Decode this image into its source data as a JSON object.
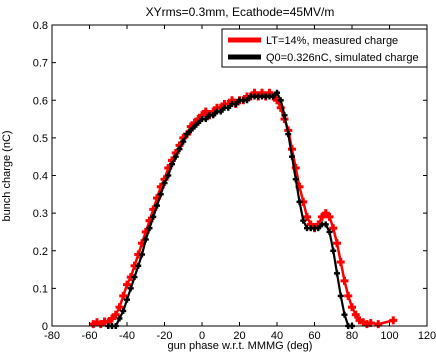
{
  "chart_data": {
    "type": "line",
    "title": "XYrms=0.3mm, Ecathode=45MV/m",
    "xlabel": "gun phase w.r.t. MMMG (deg)",
    "ylabel": "bunch charge (nC)",
    "xlim": [
      -80,
      120
    ],
    "ylim": [
      0,
      0.8
    ],
    "x_ticks": [
      -80,
      -60,
      -40,
      -20,
      0,
      20,
      40,
      60,
      80,
      100,
      120
    ],
    "x_tick_labels": [
      "-80",
      "-60",
      "-40",
      "-20",
      "0",
      "20",
      "40",
      "60",
      "80",
      "100",
      "120"
    ],
    "y_ticks": [
      0,
      0.1,
      0.2,
      0.3,
      0.4,
      0.5,
      0.6,
      0.7,
      0.8
    ],
    "y_tick_labels": [
      "0",
      "0.1",
      "0.2",
      "0.3",
      "0.4",
      "0.5",
      "0.6",
      "0.7",
      "0.8"
    ],
    "grid": false,
    "legend_position": "top-right",
    "series": [
      {
        "name": "LT=14%, measured charge",
        "color": "#ff0000",
        "marker": "plus",
        "points": [
          [
            -58,
            0.005
          ],
          [
            -56,
            0.01
          ],
          [
            -54,
            0.005
          ],
          [
            -52,
            0.012
          ],
          [
            -50,
            0.01
          ],
          [
            -48,
            0.02
          ],
          [
            -46,
            0.03
          ],
          [
            -44,
            0.05
          ],
          [
            -42,
            0.08
          ],
          [
            -40,
            0.11
          ],
          [
            -38,
            0.13
          ],
          [
            -36,
            0.16
          ],
          [
            -34,
            0.19
          ],
          [
            -32,
            0.22
          ],
          [
            -30,
            0.25
          ],
          [
            -28,
            0.28
          ],
          [
            -26,
            0.31
          ],
          [
            -24,
            0.34
          ],
          [
            -22,
            0.37
          ],
          [
            -20,
            0.39
          ],
          [
            -18,
            0.42
          ],
          [
            -16,
            0.44
          ],
          [
            -14,
            0.46
          ],
          [
            -12,
            0.48
          ],
          [
            -10,
            0.5
          ],
          [
            -8,
            0.51
          ],
          [
            -6,
            0.53
          ],
          [
            -4,
            0.54
          ],
          [
            -2,
            0.55
          ],
          [
            0,
            0.56
          ],
          [
            2,
            0.57
          ],
          [
            4,
            0.56
          ],
          [
            6,
            0.57
          ],
          [
            8,
            0.58
          ],
          [
            10,
            0.58
          ],
          [
            12,
            0.59
          ],
          [
            14,
            0.59
          ],
          [
            16,
            0.6
          ],
          [
            18,
            0.59
          ],
          [
            20,
            0.6
          ],
          [
            22,
            0.6
          ],
          [
            24,
            0.61
          ],
          [
            26,
            0.61
          ],
          [
            28,
            0.62
          ],
          [
            30,
            0.61
          ],
          [
            32,
            0.62
          ],
          [
            34,
            0.61
          ],
          [
            36,
            0.62
          ],
          [
            38,
            0.61
          ],
          [
            40,
            0.6
          ],
          [
            42,
            0.58
          ],
          [
            44,
            0.55
          ],
          [
            46,
            0.52
          ],
          [
            48,
            0.47
          ],
          [
            50,
            0.42
          ],
          [
            52,
            0.37
          ],
          [
            54,
            0.33
          ],
          [
            56,
            0.29
          ],
          [
            58,
            0.27
          ],
          [
            60,
            0.26
          ],
          [
            62,
            0.27
          ],
          [
            64,
            0.29
          ],
          [
            66,
            0.3
          ],
          [
            68,
            0.29
          ],
          [
            70,
            0.26
          ],
          [
            72,
            0.22
          ],
          [
            74,
            0.17
          ],
          [
            76,
            0.12
          ],
          [
            78,
            0.08
          ],
          [
            80,
            0.05
          ],
          [
            82,
            0.03
          ],
          [
            84,
            0.015
          ],
          [
            86,
            0.01
          ],
          [
            88,
            0.005
          ],
          [
            90,
            0.008
          ],
          [
            94,
            0.005
          ],
          [
            102,
            0.015
          ]
        ]
      },
      {
        "name": "Q0=0.326nC, simulated charge",
        "color": "#000000",
        "marker": "plus",
        "points": [
          [
            -50,
            0.0
          ],
          [
            -48,
            0.0
          ],
          [
            -46,
            0.0
          ],
          [
            -44,
            0.02
          ],
          [
            -42,
            0.04
          ],
          [
            -40,
            0.07
          ],
          [
            -38,
            0.1
          ],
          [
            -36,
            0.13
          ],
          [
            -34,
            0.16
          ],
          [
            -32,
            0.19
          ],
          [
            -30,
            0.23
          ],
          [
            -28,
            0.26
          ],
          [
            -26,
            0.29
          ],
          [
            -24,
            0.32
          ],
          [
            -22,
            0.35
          ],
          [
            -20,
            0.38
          ],
          [
            -18,
            0.4
          ],
          [
            -16,
            0.43
          ],
          [
            -14,
            0.45
          ],
          [
            -12,
            0.47
          ],
          [
            -10,
            0.49
          ],
          [
            -8,
            0.51
          ],
          [
            -6,
            0.52
          ],
          [
            -4,
            0.53
          ],
          [
            -2,
            0.54
          ],
          [
            0,
            0.55
          ],
          [
            2,
            0.55
          ],
          [
            4,
            0.56
          ],
          [
            6,
            0.56
          ],
          [
            8,
            0.57
          ],
          [
            10,
            0.57
          ],
          [
            12,
            0.58
          ],
          [
            14,
            0.58
          ],
          [
            16,
            0.59
          ],
          [
            18,
            0.59
          ],
          [
            20,
            0.6
          ],
          [
            22,
            0.6
          ],
          [
            24,
            0.6
          ],
          [
            26,
            0.61
          ],
          [
            28,
            0.61
          ],
          [
            30,
            0.61
          ],
          [
            32,
            0.61
          ],
          [
            34,
            0.61
          ],
          [
            36,
            0.61
          ],
          [
            38,
            0.61
          ],
          [
            40,
            0.62
          ],
          [
            42,
            0.6
          ],
          [
            44,
            0.56
          ],
          [
            46,
            0.51
          ],
          [
            48,
            0.45
          ],
          [
            50,
            0.39
          ],
          [
            52,
            0.33
          ],
          [
            54,
            0.28
          ],
          [
            56,
            0.26
          ],
          [
            58,
            0.26
          ],
          [
            60,
            0.26
          ],
          [
            62,
            0.26
          ],
          [
            64,
            0.27
          ],
          [
            66,
            0.27
          ],
          [
            68,
            0.25
          ],
          [
            70,
            0.2
          ],
          [
            72,
            0.14
          ],
          [
            74,
            0.08
          ],
          [
            76,
            0.03
          ],
          [
            78,
            0.0
          ],
          [
            80,
            0.0
          ]
        ]
      }
    ]
  }
}
